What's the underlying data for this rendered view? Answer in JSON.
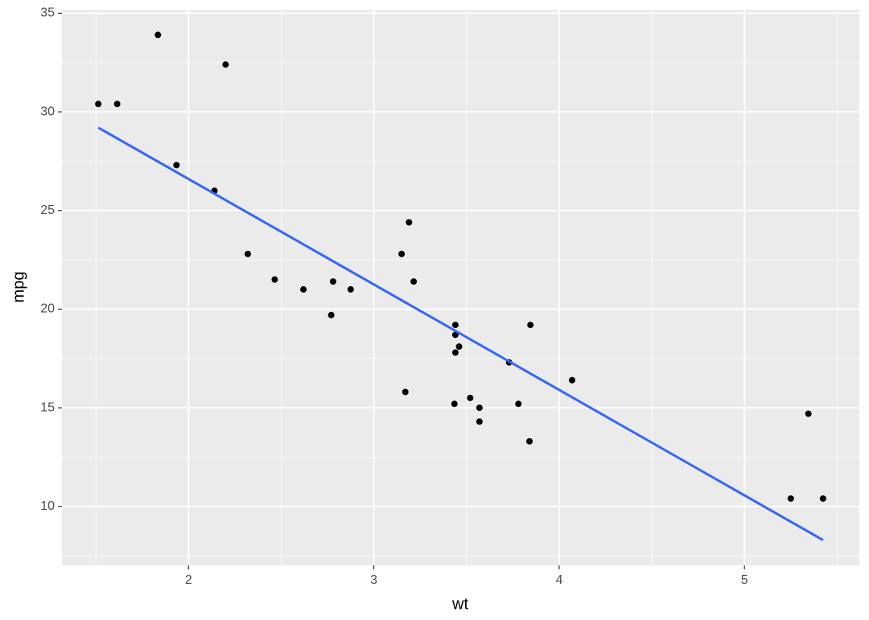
{
  "chart_data": {
    "type": "scatter",
    "x_label": "wt",
    "y_label": "mpg",
    "x": [
      2.62,
      2.875,
      2.32,
      3.215,
      3.44,
      3.46,
      3.57,
      3.19,
      3.15,
      3.44,
      3.44,
      4.07,
      3.73,
      3.78,
      5.25,
      5.424,
      5.345,
      2.2,
      1.615,
      1.835,
      2.465,
      3.52,
      3.435,
      3.84,
      3.845,
      1.935,
      2.14,
      1.513,
      3.17,
      2.77,
      3.57,
      2.78
    ],
    "values": [
      21.0,
      21.0,
      22.8,
      21.4,
      18.7,
      18.1,
      14.3,
      24.4,
      22.8,
      19.2,
      17.8,
      16.4,
      17.3,
      15.2,
      10.4,
      10.4,
      14.7,
      32.4,
      30.4,
      33.9,
      21.5,
      15.5,
      15.2,
      13.3,
      19.2,
      27.3,
      26.0,
      30.4,
      15.8,
      19.7,
      15.0,
      21.4
    ],
    "color": "#000000",
    "fit": {
      "x": [
        1.513,
        5.424
      ],
      "values": [
        29.199,
        8.296
      ],
      "color": "#3366FF"
    },
    "xlim": [
      1.317,
      5.62
    ],
    "ylim": [
      7.016,
      35.18
    ],
    "xticks": [
      2,
      3,
      4,
      5
    ],
    "yticks": [
      10,
      15,
      20,
      25,
      30,
      35
    ],
    "xminor": [
      1.5,
      2.5,
      3.5,
      4.5,
      5.5
    ],
    "yminor": [
      7.5,
      12.5,
      17.5,
      22.5,
      27.5,
      32.5
    ],
    "grid": true,
    "panel_color": "#EBEBEB"
  }
}
